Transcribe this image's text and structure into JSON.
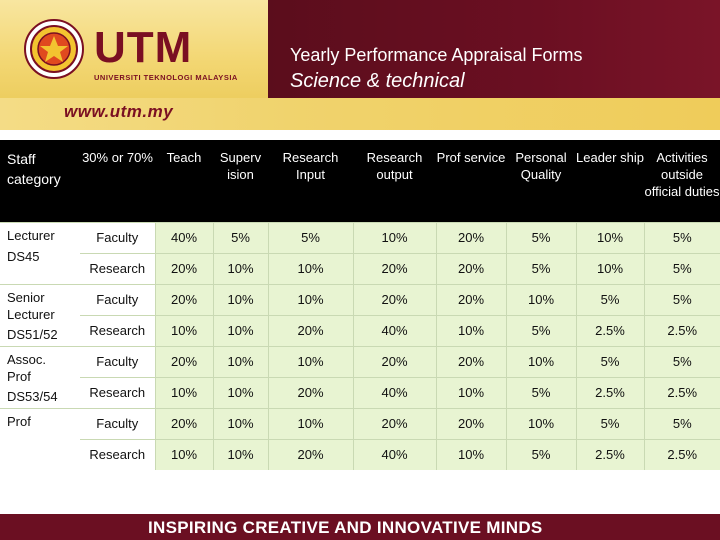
{
  "header": {
    "logo_text": "UTM",
    "logo_subtitle": "UNIVERSITI TEKNOLOGI MALAYSIA",
    "title": "Yearly Performance Appraisal Forms",
    "subtitle": "Science & technical",
    "url": "www.utm.my",
    "colors": {
      "maroon": "#6b0f22",
      "gold": "#f0d36d"
    }
  },
  "table": {
    "columns": [
      "Staff category",
      "30% or 70%",
      "Teach",
      "Superv ision",
      "Research Input",
      "Research output",
      "Prof service",
      "Personal Quality",
      "Leader ship",
      "Activities outside official duties"
    ],
    "groups": [
      {
        "category": [
          "Lecturer",
          "DS45"
        ],
        "rows": [
          {
            "type": "Faculty",
            "values": [
              "40%",
              "5%",
              "5%",
              "10%",
              "20%",
              "5%",
              "10%",
              "5%"
            ]
          },
          {
            "type": "Research",
            "values": [
              "20%",
              "10%",
              "10%",
              "20%",
              "20%",
              "5%",
              "10%",
              "5%"
            ]
          }
        ]
      },
      {
        "category": [
          "Senior Lecturer",
          "DS51/52"
        ],
        "rows": [
          {
            "type": "Faculty",
            "values": [
              "20%",
              "10%",
              "10%",
              "20%",
              "20%",
              "10%",
              "5%",
              "5%"
            ]
          },
          {
            "type": "Research",
            "values": [
              "10%",
              "10%",
              "20%",
              "40%",
              "10%",
              "5%",
              "2.5%",
              "2.5%"
            ]
          }
        ]
      },
      {
        "category": [
          "Assoc. Prof",
          "DS53/54"
        ],
        "rows": [
          {
            "type": "Faculty",
            "values": [
              "20%",
              "10%",
              "10%",
              "20%",
              "20%",
              "10%",
              "5%",
              "5%"
            ]
          },
          {
            "type": "Research",
            "values": [
              "10%",
              "10%",
              "20%",
              "40%",
              "10%",
              "5%",
              "2.5%",
              "2.5%"
            ]
          }
        ]
      },
      {
        "category": [
          "Prof",
          ""
        ],
        "rows": [
          {
            "type": "Faculty",
            "values": [
              "20%",
              "10%",
              "10%",
              "20%",
              "20%",
              "10%",
              "5%",
              "5%"
            ]
          },
          {
            "type": "Research",
            "values": [
              "10%",
              "10%",
              "20%",
              "40%",
              "10%",
              "5%",
              "2.5%",
              "2.5%"
            ]
          }
        ]
      }
    ]
  },
  "footer": {
    "tagline": "INSPIRING CREATIVE AND INNOVATIVE MINDS"
  }
}
